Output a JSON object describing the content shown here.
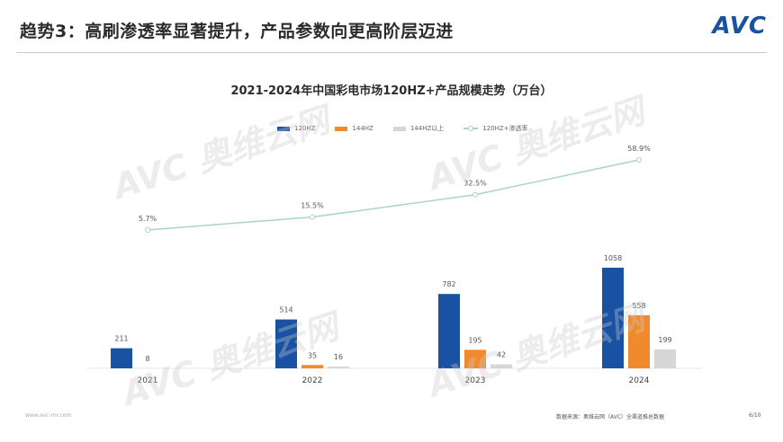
{
  "header": {
    "title": "趋势3：高刷渗透率显著提升，产品参数向更高阶层迈进",
    "logo": "AVC"
  },
  "watermark": {
    "brand": "AVC",
    "text": "奥维云网",
    "subtext": "ALL VIEW CLOUD"
  },
  "footer": {
    "website": "www.avc-mr.com",
    "source": "数据来源：奥维云网（AVC）全渠道推总数据",
    "page": "6/10"
  },
  "chart_data": {
    "type": "bar",
    "title": "2021-2024年中国彩电市场120HZ+产品规模走势（万台）",
    "categories": [
      "2021",
      "2022",
      "2023",
      "2024"
    ],
    "series": [
      {
        "name": "120HZ",
        "values": [
          211,
          514,
          782,
          1058
        ],
        "labels": [
          "211",
          "514",
          "782",
          "1058"
        ],
        "color": "#1a52a3"
      },
      {
        "name": "144HZ",
        "values": [
          0,
          35,
          195,
          558
        ],
        "labels": [
          "",
          "35",
          "195",
          "558"
        ],
        "color": "#f08a2c"
      },
      {
        "name": "144HZ以上",
        "values": [
          0,
          16,
          42,
          199
        ],
        "labels": [
          "",
          "16",
          "42",
          "199"
        ],
        "color": "#d6d6d6"
      }
    ],
    "extra_label": {
      "category": "2021",
      "text": "8"
    },
    "line_series": {
      "name": "120HZ+渗透率",
      "values": [
        5.7,
        15.5,
        32.5,
        58.9
      ],
      "labels": [
        "5.7%",
        "15.5%",
        "32.5%",
        "58.9%"
      ],
      "color": "#a9d3d3"
    },
    "legend": "top-center",
    "grid": false
  }
}
